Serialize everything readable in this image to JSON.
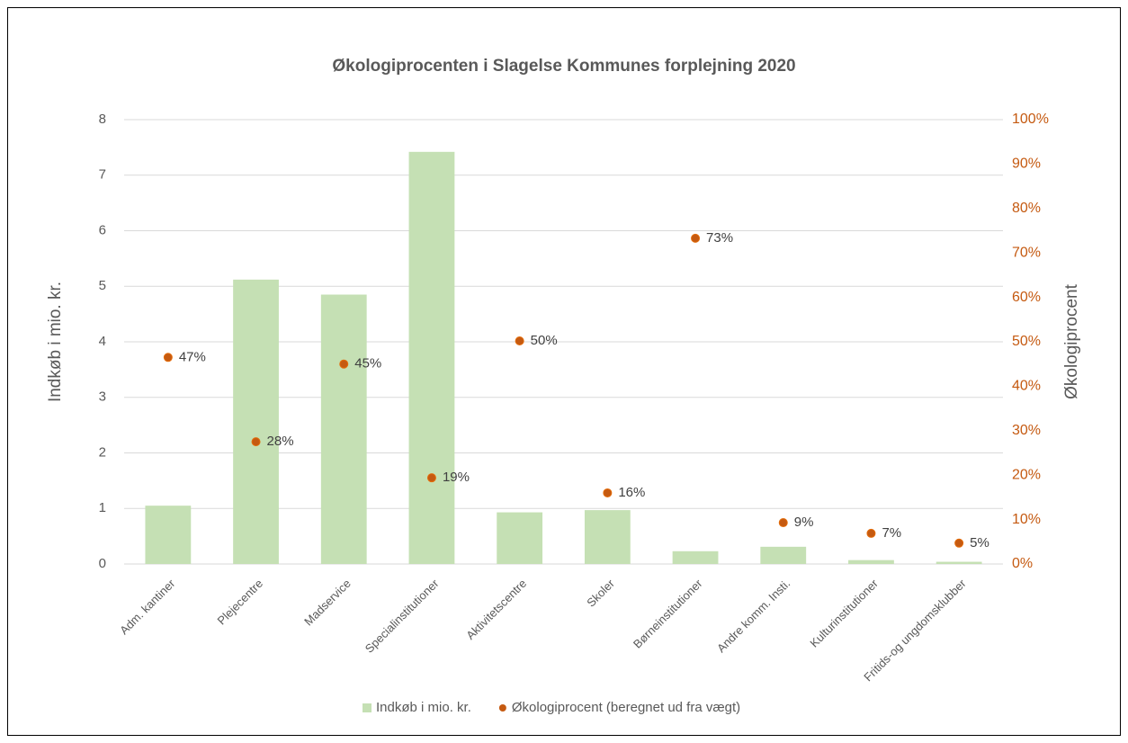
{
  "chart_data": {
    "type": "bar_scatter",
    "title": "Økologiprocenten  i Slagelse Kommunes forplejning 2020",
    "y_label": "Indkøb i mio. kr.",
    "y2_label": "Økologiprocent",
    "categories": [
      "Adm. kantiner",
      "Plejecentre",
      "Madservice",
      "Specialinstitutioner",
      "Aktivitetscentre",
      "Skoler",
      "Børneinstitutioner",
      "Andre komm. Insti.",
      "Kulturinstitutioner",
      "Fritids-og ungdomsklubber"
    ],
    "series": [
      {
        "name": "Indkøb i mio. kr.",
        "color": "#c5e0b4",
        "type": "bar",
        "values": [
          1.05,
          5.12,
          4.85,
          7.42,
          0.93,
          0.97,
          0.23,
          0.31,
          0.07,
          0.04
        ]
      },
      {
        "name": "Økologiprocent (beregnet ud fra vægt)",
        "color": "#c55a11",
        "type": "scatter",
        "axis": "y2",
        "values": [
          46.5,
          27.5,
          45,
          19.4,
          50.2,
          16,
          73.3,
          9.3,
          6.9,
          4.7
        ],
        "value_labels": [
          "47%",
          "28%",
          "45%",
          "19%",
          "50%",
          "16%",
          "73%",
          "9%",
          "7%",
          "5%"
        ]
      }
    ],
    "ylim": [
      0,
      8
    ],
    "yticks": [
      0,
      1,
      2,
      3,
      4,
      5,
      6,
      7,
      8
    ],
    "y2lim": [
      0,
      100
    ],
    "y2ticks": [
      {
        "value": 0,
        "label": "0%"
      },
      {
        "value": 10,
        "label": "10%"
      },
      {
        "value": 20,
        "label": "20%"
      },
      {
        "value": 30,
        "label": "30%"
      },
      {
        "value": 40,
        "label": "40%"
      },
      {
        "value": 50,
        "label": "50%"
      },
      {
        "value": 60,
        "label": "60%"
      },
      {
        "value": 70,
        "label": "70%"
      },
      {
        "value": 80,
        "label": "80%"
      },
      {
        "value": 90,
        "label": "90%"
      },
      {
        "value": 100,
        "label": "100%"
      }
    ],
    "grid": true,
    "legend": "bottom"
  }
}
